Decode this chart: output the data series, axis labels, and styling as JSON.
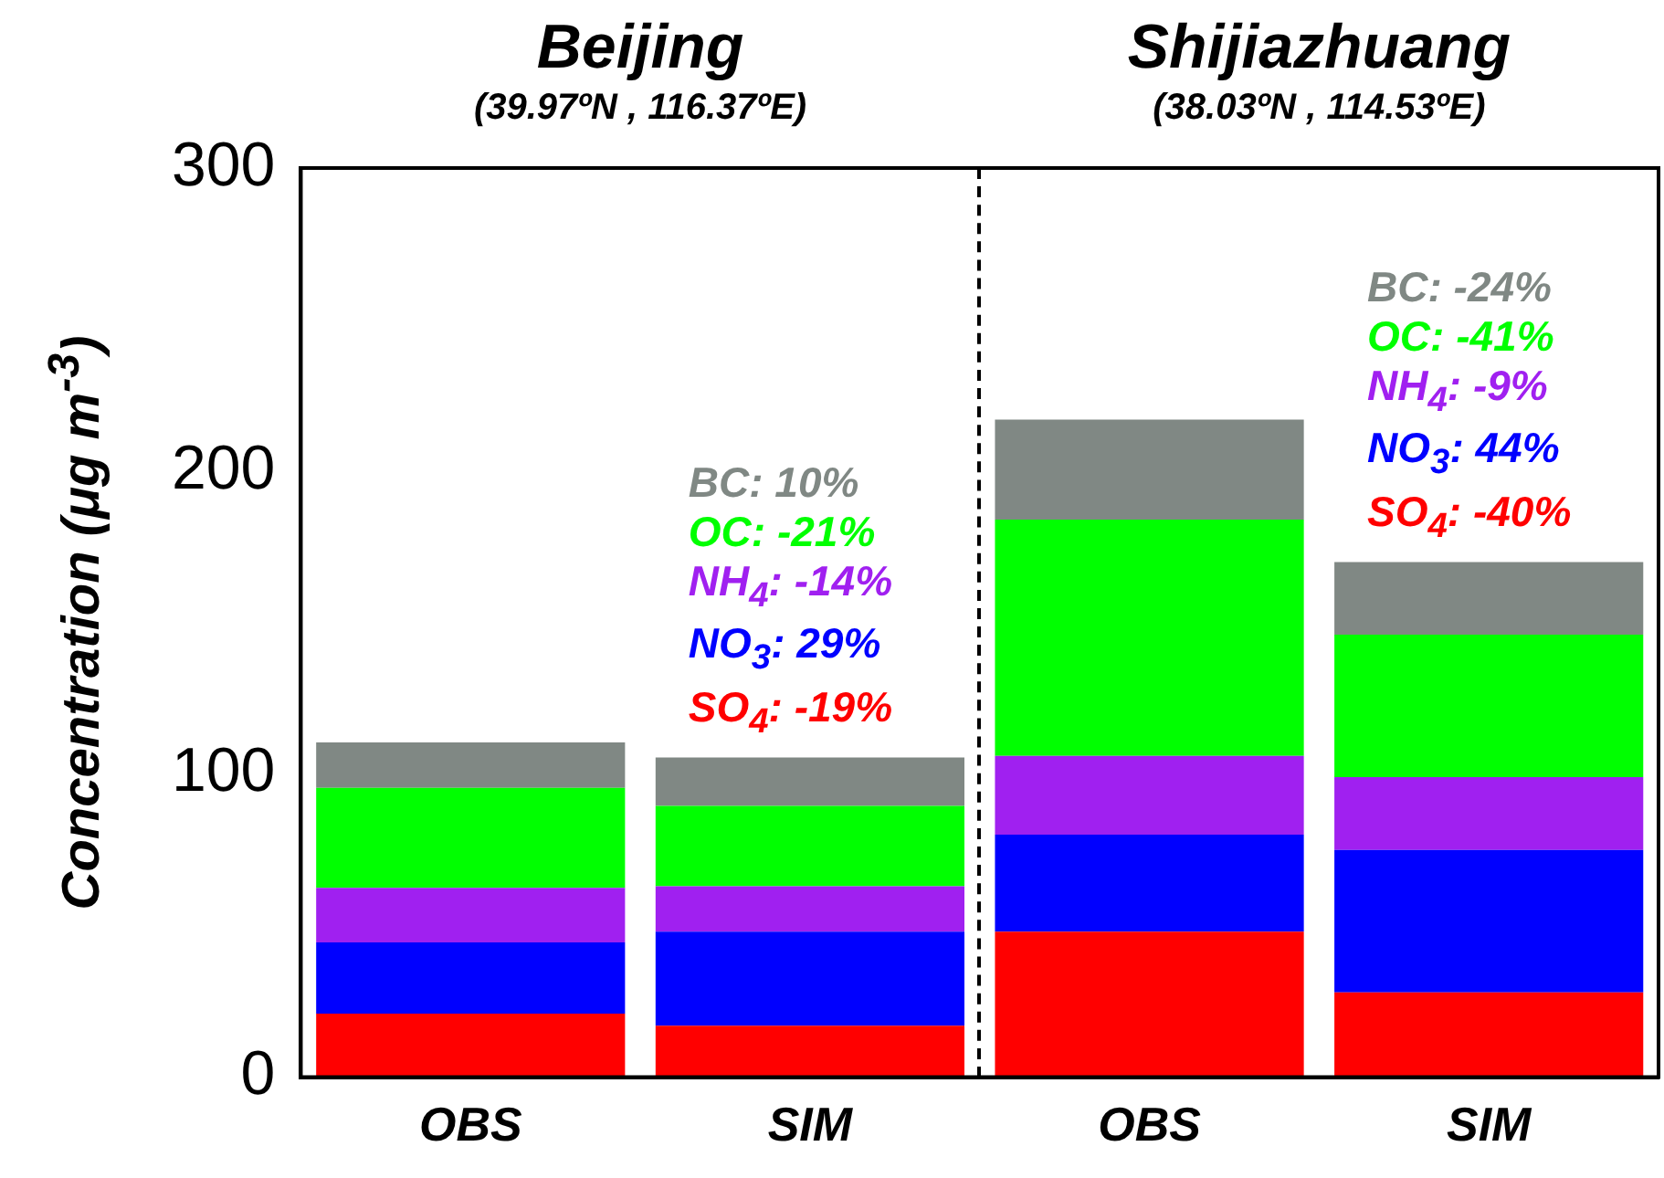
{
  "chart_data": {
    "type": "bar",
    "stacked": true,
    "ylabel": "Concentration (μg m$^{-3}$)",
    "categories": [
      "OBS",
      "SIM",
      "OBS",
      "SIM"
    ],
    "series": [
      {
        "color": "#ff0000",
        "values": [
          21,
          17,
          48,
          28
        ]
      },
      {
        "color": "#0000ff",
        "values": [
          23.5,
          31,
          32,
          47
        ]
      },
      {
        "color": "#a020f0",
        "values": [
          18,
          15,
          26,
          24
        ]
      },
      {
        "color": "#00ff00",
        "values": [
          33,
          26.5,
          78,
          47
        ]
      },
      {
        "color": "#808884",
        "values": [
          15,
          16,
          33,
          24
        ]
      }
    ],
    "ylim": [
      0,
      300
    ],
    "yticks": [
      0,
      100,
      200,
      300
    ],
    "grid": false,
    "legend": false,
    "annotations": [
      "Beijing",
      "(39.97ºN , 116.37ºE)",
      "Shijiazhuang",
      "(38.03ºN , 114.53ºE)",
      "BC: 10%",
      "OC: -21%",
      "NH$_{4}$: -14%",
      "NO$_{3}$: 29%",
      "SO$_{4}$: -19%",
      "BC: -24%",
      "OC: -41%",
      "NH$_{4}$: -9%",
      "NO$_{3}$: 44%",
      "SO$_{4}$: -40%"
    ]
  }
}
